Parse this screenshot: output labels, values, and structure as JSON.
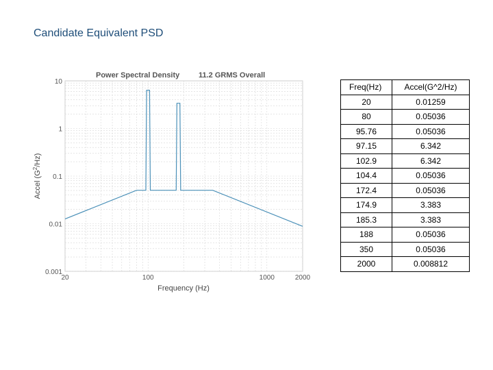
{
  "slide": {
    "title": "Candidate Equivalent PSD"
  },
  "table": {
    "headers": [
      "Freq(Hz)",
      "Accel(G^2/Hz)"
    ],
    "rows": [
      [
        "20",
        "0.01259"
      ],
      [
        "80",
        "0.05036"
      ],
      [
        "95.76",
        "0.05036"
      ],
      [
        "97.15",
        "6.342"
      ],
      [
        "102.9",
        "6.342"
      ],
      [
        "104.4",
        "0.05036"
      ],
      [
        "172.4",
        "0.05036"
      ],
      [
        "174.9",
        "3.383"
      ],
      [
        "185.3",
        "3.383"
      ],
      [
        "188",
        "0.05036"
      ],
      [
        "350",
        "0.05036"
      ],
      [
        "2000",
        "0.008812"
      ]
    ]
  },
  "chart_data": {
    "type": "line",
    "title": "Power Spectral Density",
    "subtitle": "11.2 GRMS Overall",
    "xlabel": "Frequency (Hz)",
    "ylabel": "Accel (G^2/Hz)",
    "xscale": "log",
    "yscale": "log",
    "xlim": [
      20,
      2000
    ],
    "ylim": [
      0.001,
      10
    ],
    "x_ticks": [
      "20",
      "100",
      "1000",
      "2000"
    ],
    "y_ticks": [
      "10",
      "1",
      "0.1",
      "0.01",
      "0.001"
    ],
    "grid": true,
    "line_color": "#4a90b8",
    "series": [
      {
        "x": [
          20,
          80,
          95.76,
          97.15,
          102.9,
          104.4,
          172.4,
          174.9,
          185.3,
          188,
          350,
          2000
        ],
        "values": [
          0.01259,
          0.05036,
          0.05036,
          6.342,
          6.342,
          0.05036,
          0.05036,
          3.383,
          3.383,
          0.05036,
          0.05036,
          0.008812
        ]
      }
    ]
  }
}
